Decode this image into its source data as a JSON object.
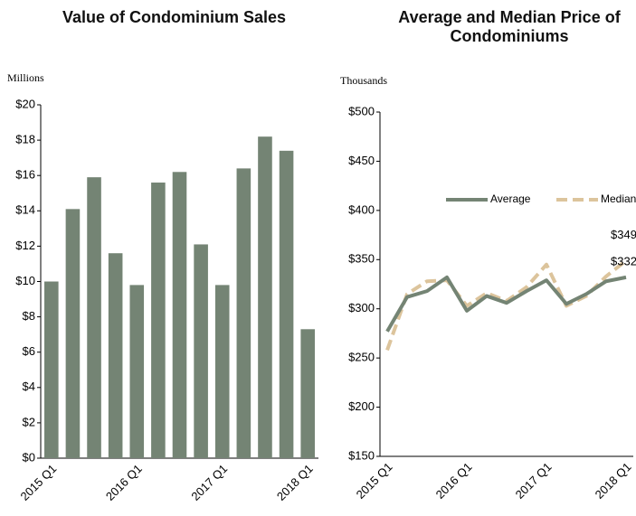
{
  "chart_data": [
    {
      "type": "bar",
      "title": "Value of Condominium Sales",
      "y_axis_label": "Millions",
      "categories": [
        "2015 Q1",
        null,
        null,
        null,
        "2016 Q1",
        null,
        null,
        null,
        "2017 Q1",
        null,
        null,
        null,
        "2018 Q1"
      ],
      "values": [
        10.0,
        14.1,
        15.9,
        11.6,
        9.8,
        15.6,
        16.2,
        12.1,
        9.8,
        16.4,
        18.2,
        17.4,
        7.3
      ],
      "color": "#748474",
      "ylim": [
        0,
        20
      ],
      "yticks": [
        {
          "value": 0,
          "label": "$0"
        },
        {
          "value": 2,
          "label": "$2"
        },
        {
          "value": 4,
          "label": "$4"
        },
        {
          "value": 6,
          "label": "$6"
        },
        {
          "value": 8,
          "label": "$8"
        },
        {
          "value": 10,
          "label": "$10"
        },
        {
          "value": 12,
          "label": "$12"
        },
        {
          "value": 14,
          "label": "$14"
        },
        {
          "value": 16,
          "label": "$16"
        },
        {
          "value": 18,
          "label": "$18"
        },
        {
          "value": 20,
          "label": "$20"
        }
      ]
    },
    {
      "type": "line",
      "title": "Average and Median Price of Condominiums",
      "y_axis_label": "Thousands",
      "categories": [
        "2015 Q1",
        null,
        null,
        null,
        "2016 Q1",
        null,
        null,
        null,
        "2017 Q1",
        null,
        null,
        null,
        "2018 Q1"
      ],
      "series": [
        {
          "name": "Average",
          "color": "#748474",
          "dashed": false,
          "values": [
            277,
            312,
            318,
            332,
            298,
            313,
            306,
            318,
            329,
            305,
            315,
            328,
            332
          ],
          "last_value_label": "$332"
        },
        {
          "name": "Median",
          "color": "#dcc49c",
          "dashed": true,
          "values": [
            258,
            315,
            328,
            329,
            303,
            316,
            308,
            322,
            345,
            303,
            313,
            333,
            349
          ],
          "last_value_label": "$349"
        }
      ],
      "ylim": [
        150,
        500
      ],
      "yticks": [
        {
          "value": 150,
          "label": "$150"
        },
        {
          "value": 200,
          "label": "$200"
        },
        {
          "value": 250,
          "label": "$250"
        },
        {
          "value": 300,
          "label": "$300"
        },
        {
          "value": 350,
          "label": "$350"
        },
        {
          "value": 400,
          "label": "$400"
        },
        {
          "value": 450,
          "label": "$450"
        },
        {
          "value": 500,
          "label": "$500"
        }
      ]
    }
  ]
}
